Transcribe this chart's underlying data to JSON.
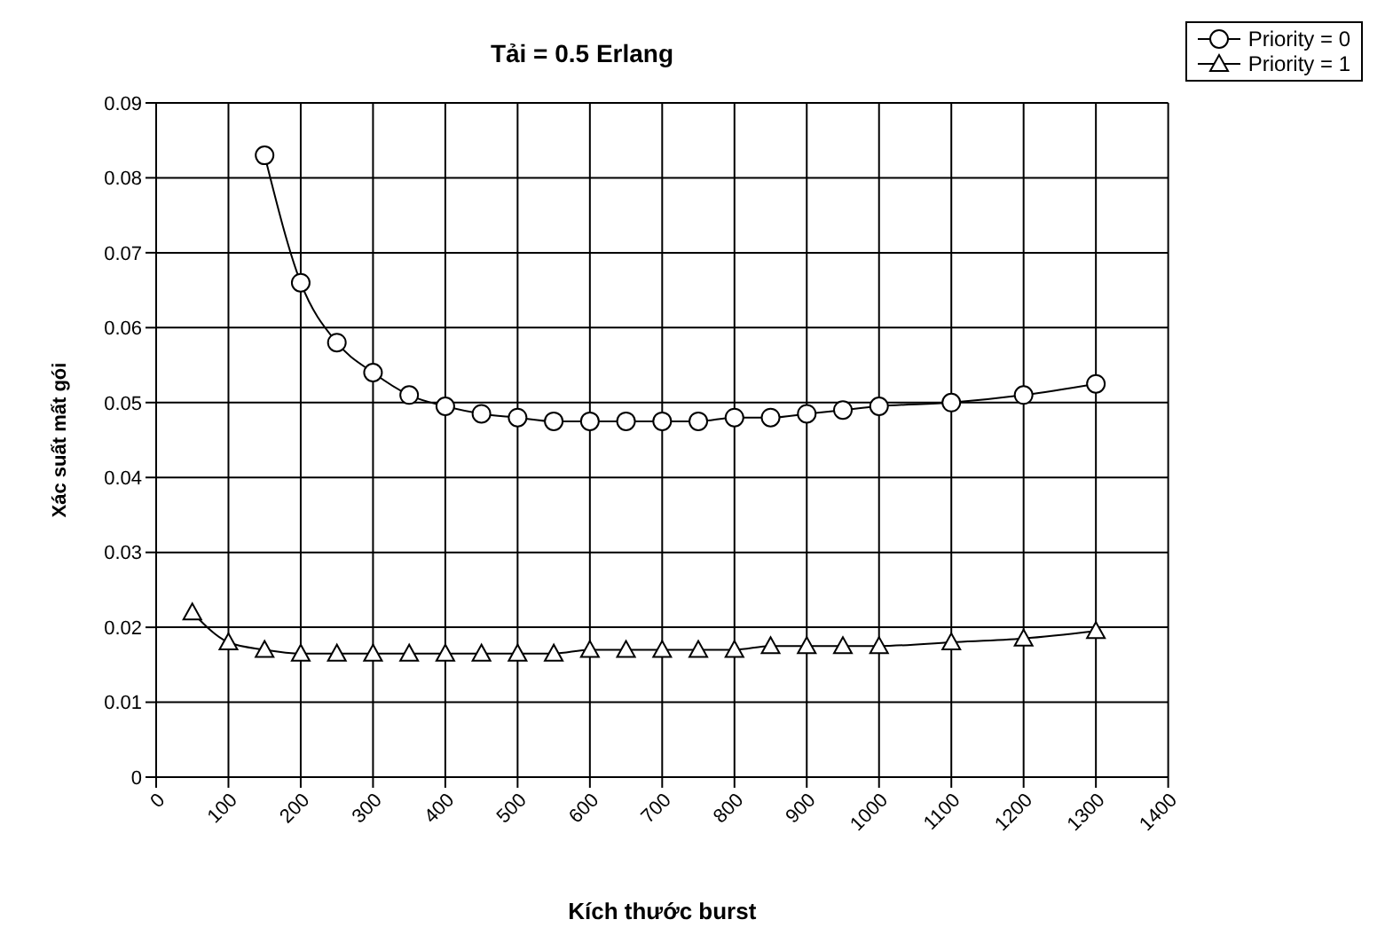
{
  "chart_data": {
    "type": "line",
    "title": "Tải = 0.5 Erlang",
    "xlabel": "Kích thước burst",
    "ylabel": "Xác suất mất gói",
    "xlim": [
      0,
      1400
    ],
    "xticks": [
      0,
      100,
      200,
      300,
      400,
      500,
      600,
      700,
      800,
      900,
      1000,
      1100,
      1200,
      1300,
      1400
    ],
    "ylim": [
      0,
      0.09
    ],
    "yticks": [
      0,
      0.01,
      0.02,
      0.03,
      0.04,
      0.05,
      0.06,
      0.07,
      0.08,
      0.09
    ],
    "grid": true,
    "legend": "top right",
    "line_style": "solid",
    "series": [
      {
        "name": "Priority = 0",
        "color": "#000000",
        "marker": "circle",
        "x": [
          150,
          200,
          250,
          300,
          350,
          400,
          450,
          500,
          550,
          600,
          650,
          700,
          750,
          800,
          850,
          900,
          950,
          1000,
          1100,
          1200,
          1300
        ],
        "values": [
          0.083,
          0.066,
          0.058,
          0.054,
          0.051,
          0.0495,
          0.0485,
          0.048,
          0.0475,
          0.0475,
          0.0475,
          0.0475,
          0.0475,
          0.048,
          0.048,
          0.0485,
          0.049,
          0.0495,
          0.05,
          0.051,
          0.0525
        ]
      },
      {
        "name": "Priority = 1",
        "color": "#000000",
        "marker": "triangle",
        "x": [
          50,
          100,
          150,
          200,
          250,
          300,
          350,
          400,
          450,
          500,
          550,
          600,
          650,
          700,
          750,
          800,
          850,
          900,
          950,
          1000,
          1100,
          1200,
          1300
        ],
        "values": [
          0.022,
          0.018,
          0.017,
          0.0165,
          0.0165,
          0.0165,
          0.0165,
          0.0165,
          0.0165,
          0.0165,
          0.0165,
          0.017,
          0.017,
          0.017,
          0.017,
          0.017,
          0.0175,
          0.0175,
          0.0175,
          0.0175,
          0.018,
          0.0185,
          0.0195
        ]
      }
    ]
  }
}
